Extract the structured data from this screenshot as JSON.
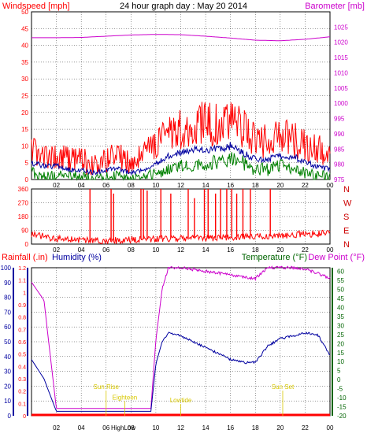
{
  "title": "24 hour graph day : May 20 2014",
  "colors": {
    "wind": "#ff0000",
    "gust": "#ff0000",
    "avgwind": "#0000a0",
    "windmin": "#008000",
    "baro": "#cc00cc",
    "humidity": "#0000a0",
    "temperature": "#cc00cc",
    "rain": "#ff0000",
    "dirlabels": "#cc0000",
    "annotation": "#d8c800",
    "temp_axis": "#006400",
    "frame": "#000000",
    "grid": "#000000"
  },
  "chart_data": [
    {
      "type": "line",
      "name": "wind-baro",
      "ylabel_left": "Windspeed [mph]",
      "ylabel_right": "Barometer [mb]",
      "ylim_left": [
        0,
        50
      ],
      "ylim_right": [
        975,
        1030
      ],
      "left_ticks": [
        "0",
        "5",
        "10",
        "15",
        "20",
        "25",
        "30",
        "35",
        "40",
        "45",
        "50"
      ],
      "right_ticks": [
        "975",
        "980",
        "985",
        "990",
        "995",
        "1000",
        "1005",
        "1010",
        "1015",
        "1020",
        "1025"
      ],
      "x_ticks": [
        "02",
        "04",
        "06",
        "08",
        "10",
        "12",
        "14",
        "16",
        "18",
        "20",
        "22",
        "00"
      ],
      "series": [
        {
          "key": "gust",
          "hours": [
            0,
            1,
            2,
            3,
            4,
            5,
            6,
            7,
            8,
            9,
            10,
            11,
            12,
            13,
            14,
            15,
            16,
            17,
            18,
            19,
            20,
            21,
            22,
            23,
            24
          ],
          "values": [
            9,
            7,
            7,
            6,
            6,
            4,
            6,
            7,
            5,
            7,
            11,
            13,
            15,
            16,
            17,
            16,
            17,
            15,
            11,
            12,
            14,
            12,
            10,
            9,
            7
          ]
        },
        {
          "key": "avgwind",
          "hours": [
            0,
            1,
            2,
            3,
            4,
            5,
            6,
            7,
            8,
            9,
            10,
            11,
            12,
            13,
            14,
            15,
            16,
            17,
            18,
            19,
            20,
            21,
            22,
            23,
            24
          ],
          "values": [
            5,
            4,
            4,
            3,
            3,
            2,
            3,
            3,
            2,
            3,
            5,
            7,
            8,
            9,
            9,
            9,
            10,
            8,
            6,
            6,
            7,
            7,
            5,
            4,
            3
          ]
        },
        {
          "key": "windmin",
          "hours": [
            0,
            1,
            2,
            3,
            4,
            5,
            6,
            7,
            8,
            9,
            10,
            11,
            12,
            13,
            14,
            15,
            16,
            17,
            18,
            19,
            20,
            21,
            22,
            23,
            24
          ],
          "values": [
            2,
            1,
            1,
            1,
            1,
            0,
            1,
            1,
            0,
            1,
            2,
            3,
            4,
            4,
            5,
            5,
            6,
            5,
            3,
            3,
            4,
            3,
            2,
            1,
            1
          ]
        },
        {
          "key": "baro",
          "hours": [
            0,
            2,
            4,
            6,
            8,
            10,
            12,
            14,
            16,
            18,
            20,
            22,
            24
          ],
          "values": [
            1021.5,
            1021.5,
            1021.6,
            1022.0,
            1022.4,
            1022.6,
            1022.5,
            1022.0,
            1021.4,
            1020.7,
            1020.5,
            1021.0,
            1021.8
          ]
        }
      ]
    },
    {
      "type": "scatter",
      "name": "wind-direction",
      "ylim": [
        0,
        360
      ],
      "left_ticks": [
        "0",
        "90",
        "180",
        "270",
        "360"
      ],
      "right_labels": [
        "N",
        "W",
        "S",
        "E",
        "N"
      ],
      "x_ticks": [
        "02",
        "04",
        "06",
        "08",
        "10",
        "12",
        "14",
        "16",
        "18",
        "20",
        "22",
        "00"
      ],
      "baseline_hours": [
        0,
        2,
        4,
        6,
        8,
        10,
        12,
        14,
        16,
        18,
        20,
        22,
        24
      ],
      "baseline_degrees": [
        65,
        35,
        25,
        20,
        30,
        35,
        40,
        40,
        45,
        50,
        55,
        65,
        70
      ],
      "spike_hours": [
        4.7,
        6.4,
        6.6,
        8.8,
        9.0,
        9.3,
        10.4,
        11.2,
        12.6,
        13.1,
        13.9,
        14.2,
        14.8,
        15.2,
        15.7,
        16.1,
        16.5,
        17.0,
        17.6,
        19.2
      ],
      "spike_degrees": [
        360,
        360,
        330,
        360,
        360,
        350,
        360,
        330,
        360,
        300,
        360,
        360,
        330,
        360,
        360,
        360,
        330,
        360,
        360,
        360
      ]
    },
    {
      "type": "line",
      "name": "humidity-temperature",
      "ylabel_left_rain": "Rainfall (.in)",
      "ylabel_left_humidity": "Humidity (%)",
      "ylabel_right_temp": "Temperature (°F)",
      "ylabel_right_dew": "Dew Point (°F)",
      "rain_ticks": [
        "0",
        "0.1",
        "0.2",
        "0.3",
        "0.4",
        "0.5",
        "0.6",
        "0.7",
        "0.8",
        "0.9",
        "1",
        "1.1",
        "1.2"
      ],
      "humidity_ticks": [
        "0",
        "10",
        "20",
        "30",
        "40",
        "50",
        "60",
        "70",
        "80",
        "90",
        "100"
      ],
      "temp_ticks": [
        "-20",
        "-15",
        "-10",
        "-5",
        "0",
        "5",
        "10",
        "15",
        "20",
        "25",
        "30",
        "35",
        "40",
        "45",
        "50",
        "55",
        "60"
      ],
      "x_ticks": [
        "02",
        "04",
        "06",
        "08",
        "10",
        "12",
        "14",
        "16",
        "18",
        "20",
        "22",
        "00"
      ],
      "ylim_humidity": [
        0,
        100
      ],
      "ylim_temp": [
        -20,
        62
      ],
      "ylim_rain": [
        0,
        1.2
      ],
      "annotations": [
        {
          "text": "Sun Rise",
          "hour": 6.0,
          "level": 0.18
        },
        {
          "text": "Eighteen",
          "hour": 7.5,
          "level": 0.11
        },
        {
          "text": "HighLow",
          "hour": 7.0,
          "level": 0.01
        },
        {
          "text": "Lowtide",
          "hour": 12.0,
          "level": 0.09
        },
        {
          "text": "Sun Set",
          "hour": 20.2,
          "level": 0.18
        }
      ],
      "series": [
        {
          "key": "temperature",
          "axis": "temp",
          "hours": [
            0,
            1,
            2,
            3,
            4,
            5,
            6,
            7,
            8,
            9,
            9.6,
            10,
            10.5,
            11,
            12,
            13,
            14,
            15,
            16,
            17,
            18,
            19,
            20,
            21,
            22,
            23,
            24
          ],
          "values": [
            54,
            44,
            -16,
            -16,
            -16,
            -16,
            -16,
            -16,
            -16,
            -16,
            -16,
            22,
            50,
            62,
            62,
            61,
            60,
            59,
            58,
            57,
            56,
            62,
            62,
            62,
            61,
            59,
            56
          ]
        },
        {
          "key": "humidity",
          "axis": "humidity",
          "hours": [
            0,
            1,
            2,
            3,
            4,
            5,
            6,
            7,
            8,
            9,
            9.6,
            10,
            10.5,
            11,
            12,
            13,
            14,
            15,
            16,
            17,
            18,
            19,
            20,
            21,
            22,
            23,
            24
          ],
          "values": [
            38,
            25,
            3,
            3,
            3,
            3,
            3,
            3,
            3,
            3,
            3,
            35,
            50,
            56,
            54,
            50,
            46,
            42,
            38,
            36,
            36,
            47,
            52,
            54,
            56,
            55,
            41
          ]
        },
        {
          "key": "rain",
          "axis": "rain",
          "hours": [
            0,
            24
          ],
          "values": [
            0,
            0
          ]
        }
      ]
    }
  ]
}
